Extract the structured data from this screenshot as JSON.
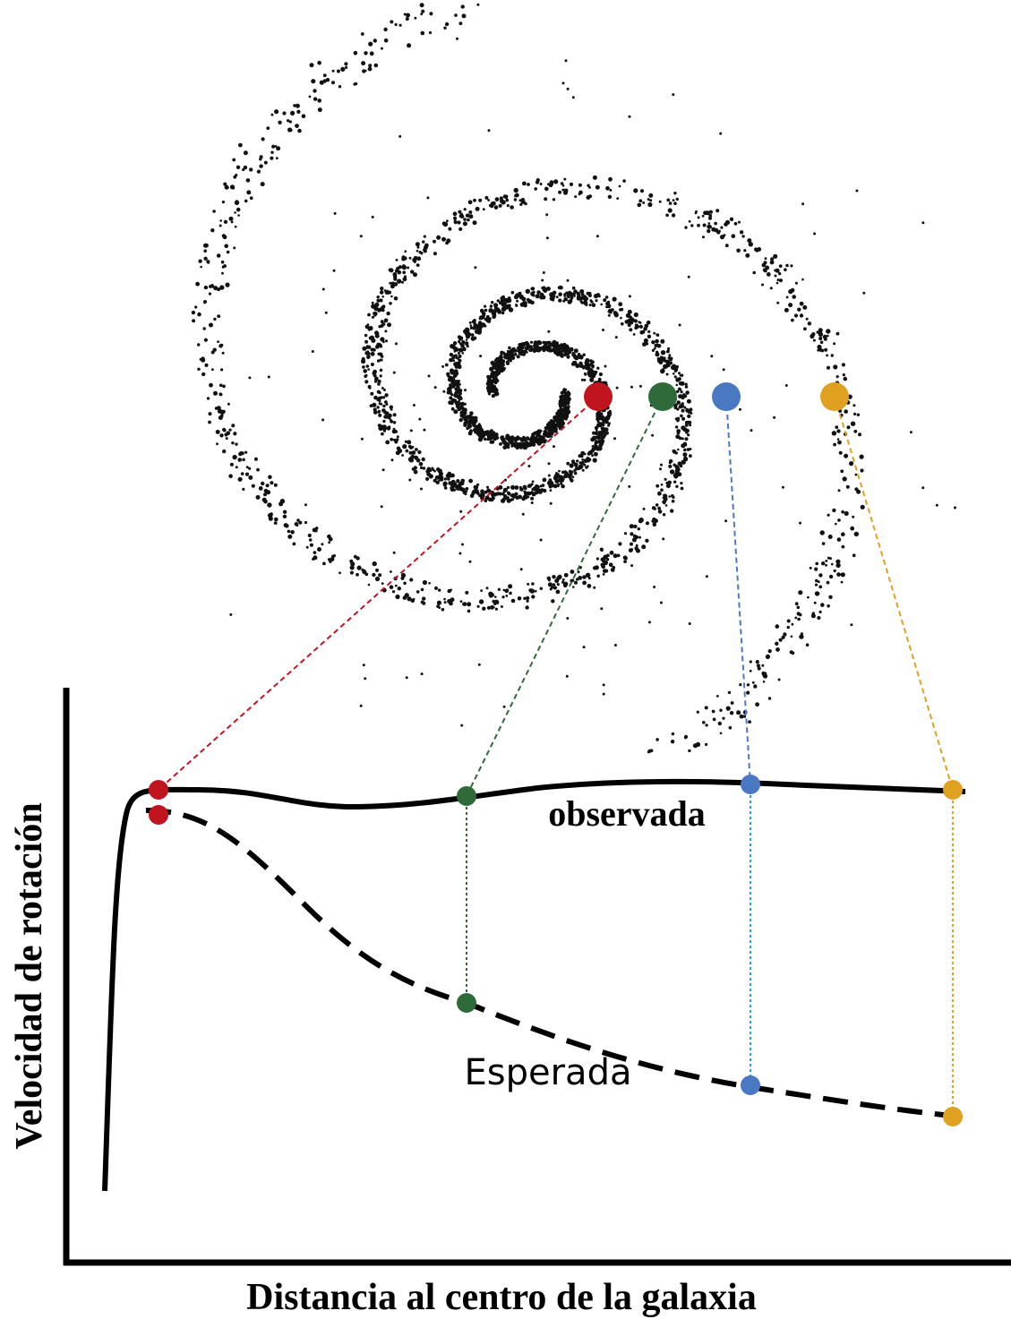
{
  "axes": {
    "y_label": "Velocidad de rotación",
    "x_label": "Distancia al centro de la galaxia"
  },
  "curves": {
    "observed": "observada",
    "expected": "Esperada"
  }
}
